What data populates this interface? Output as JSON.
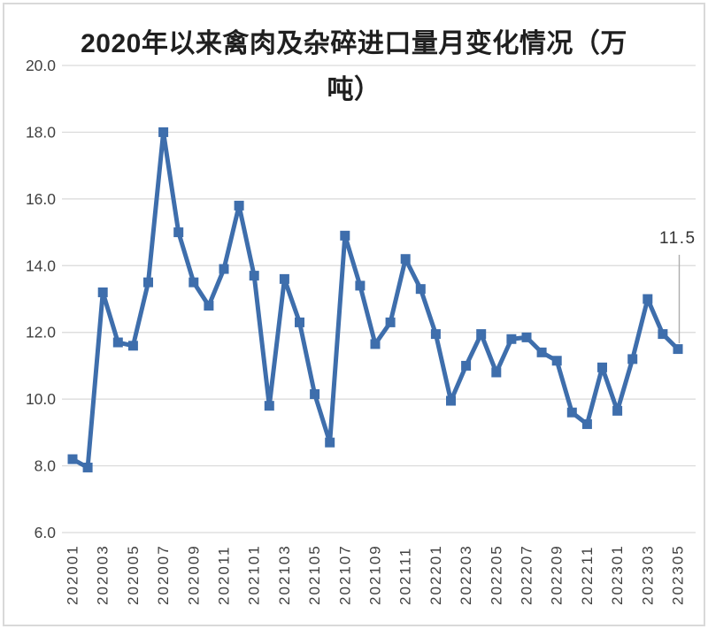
{
  "chart_data": {
    "type": "line",
    "title": "2020年以来禽肉及杂碎进口量月变化情况（万吨）",
    "title_lines": [
      "2020年以来禽肉及杂碎进口量月变化情况（万",
      "吨）"
    ],
    "categories": [
      "202001",
      "202002",
      "202003",
      "202004",
      "202005",
      "202006",
      "202007",
      "202008",
      "202009",
      "202010",
      "202011",
      "202012",
      "202101",
      "202102",
      "202103",
      "202104",
      "202105",
      "202106",
      "202107",
      "202108",
      "202109",
      "202110",
      "202111",
      "202112",
      "202201",
      "202202",
      "202203",
      "202204",
      "202205",
      "202206",
      "202207",
      "202208",
      "202209",
      "202210",
      "202211",
      "202212",
      "202301",
      "202302",
      "202303",
      "202304",
      "202305"
    ],
    "values": [
      8.2,
      7.95,
      13.2,
      11.7,
      11.6,
      13.5,
      18.0,
      15.0,
      13.5,
      12.8,
      13.9,
      15.8,
      13.7,
      9.8,
      13.6,
      12.3,
      10.15,
      8.7,
      14.9,
      13.4,
      11.65,
      12.3,
      14.2,
      13.3,
      11.95,
      9.95,
      11.0,
      11.95,
      10.8,
      11.8,
      11.85,
      11.4,
      11.15,
      9.6,
      9.25,
      10.95,
      9.65,
      11.2,
      13.0,
      11.95,
      11.5
    ],
    "x_axis_labels": [
      "202001",
      "202003",
      "202005",
      "202007",
      "202009",
      "202011",
      "202101",
      "202103",
      "202105",
      "202107",
      "202109",
      "202111",
      "202201",
      "202203",
      "202205",
      "202207",
      "202209",
      "202211",
      "202301",
      "202303",
      "202305"
    ],
    "y_tick_labels": [
      "20.0",
      "18.0",
      "16.0",
      "14.0",
      "12.0",
      "10.0",
      "8.0",
      "6.0"
    ],
    "ylim": [
      6.0,
      20.0
    ],
    "y_step": 2.0,
    "grid": "horizontal",
    "legend": "none",
    "xlabel": "",
    "ylabel": "",
    "annotation": {
      "text": "11.5",
      "category": "202305",
      "value": 11.5
    },
    "colors": {
      "series": "#3E6EAC",
      "gridline": "#D9D9D9",
      "tick_label": "#404040",
      "title": "#1F1F1F",
      "annotation_text": "#333333",
      "leader_line": "#ADADAD",
      "frame_border": "#D9D9D9",
      "background": "#FFFFFF"
    }
  }
}
